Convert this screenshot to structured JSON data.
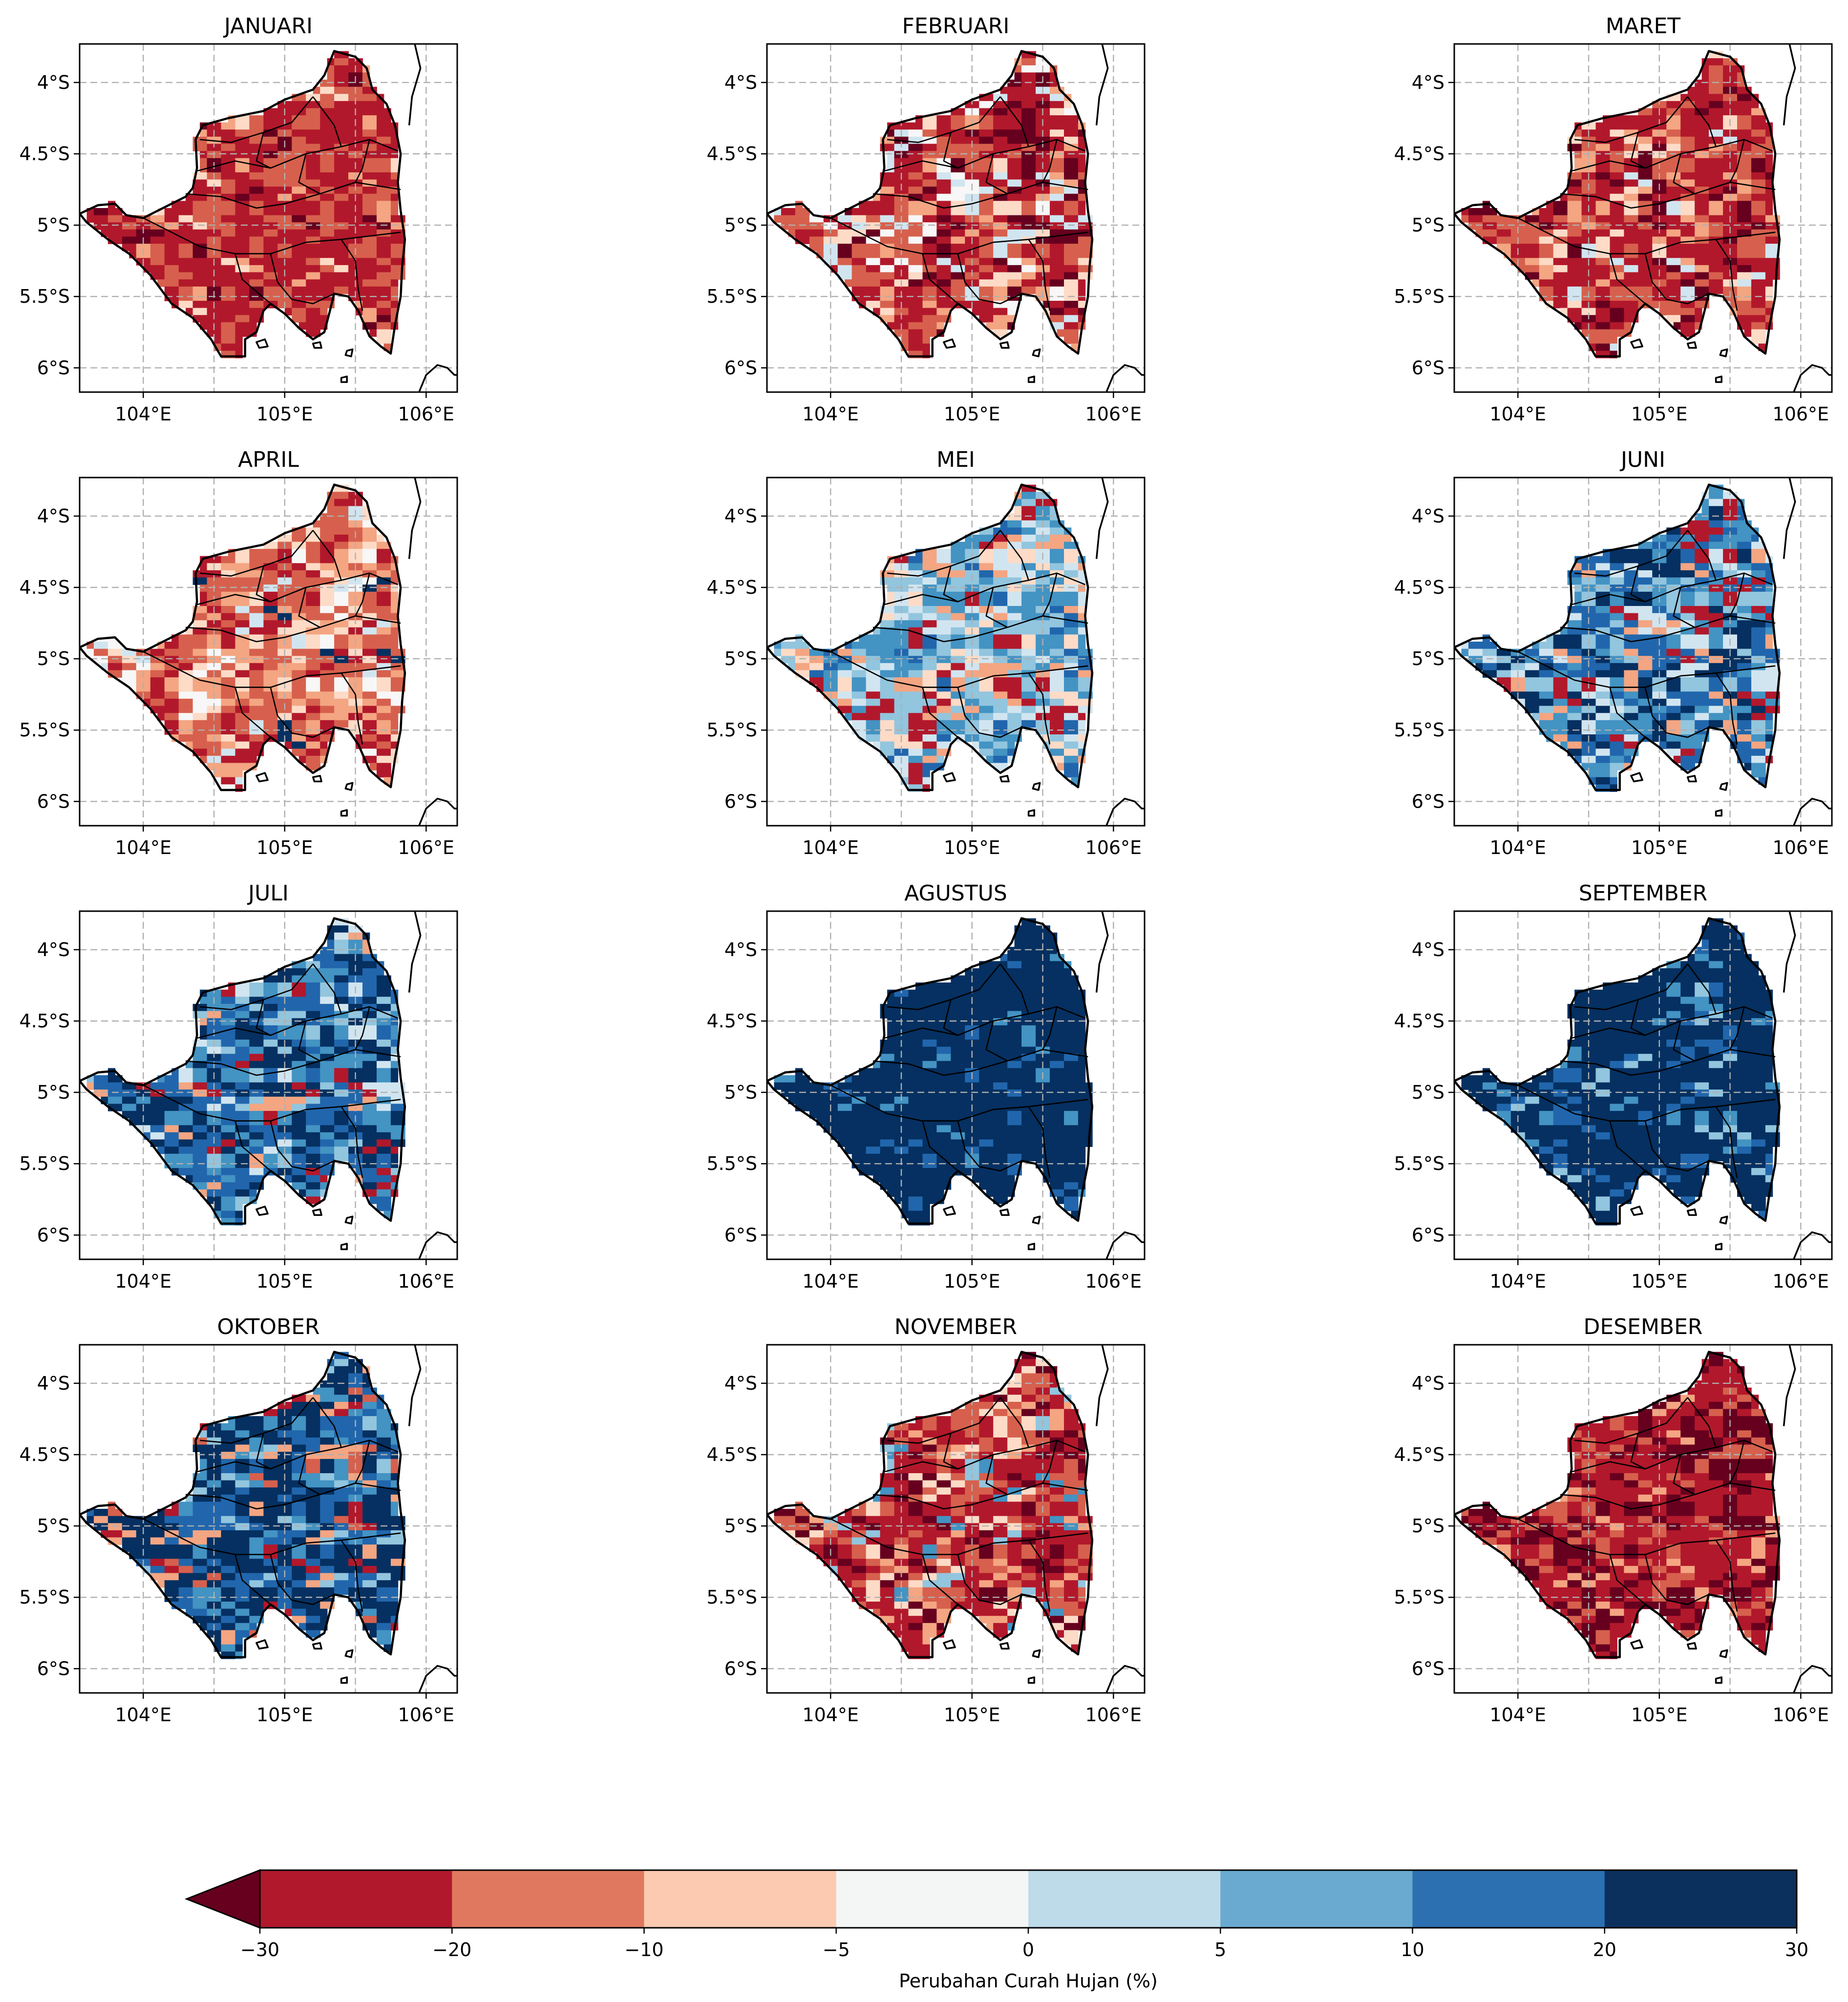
{
  "panels": [
    {
      "title": "JANUARI",
      "palette": [
        "#b2182b",
        "#d6604d",
        "#b2182b",
        "#67001f",
        "#f4a582",
        "#fddbc7"
      ],
      "weights": [
        35,
        30,
        20,
        6,
        6,
        3
      ]
    },
    {
      "title": "FEBRUARI",
      "palette": [
        "#b2182b",
        "#d6604d",
        "#67001f",
        "#f4a582",
        "#fddbc7",
        "#d1e5f0",
        "#f7f7f7"
      ],
      "weights": [
        30,
        25,
        14,
        10,
        8,
        7,
        6
      ]
    },
    {
      "title": "MARET",
      "palette": [
        "#b2182b",
        "#d6604d",
        "#67001f",
        "#f4a582",
        "#fddbc7",
        "#d1e5f0"
      ],
      "weights": [
        45,
        25,
        12,
        8,
        6,
        4
      ]
    },
    {
      "title": "APRIL",
      "palette": [
        "#d6604d",
        "#f4a582",
        "#b2182b",
        "#fddbc7",
        "#f7f7f7",
        "#d1e5f0",
        "#053061"
      ],
      "weights": [
        38,
        18,
        16,
        12,
        8,
        5,
        3
      ]
    },
    {
      "title": "MEI",
      "palette": [
        "#4393c3",
        "#92c5de",
        "#d1e5f0",
        "#f4a582",
        "#fddbc7",
        "#b2182b",
        "#2166ac"
      ],
      "weights": [
        24,
        20,
        14,
        12,
        10,
        10,
        10
      ]
    },
    {
      "title": "JUNI",
      "palette": [
        "#2166ac",
        "#4393c3",
        "#053061",
        "#92c5de",
        "#d1e5f0",
        "#b2182b",
        "#f4a582"
      ],
      "weights": [
        24,
        20,
        18,
        12,
        10,
        8,
        8
      ]
    },
    {
      "title": "JULI",
      "palette": [
        "#2166ac",
        "#053061",
        "#4393c3",
        "#92c5de",
        "#d1e5f0",
        "#b2182b",
        "#f4a582"
      ],
      "weights": [
        28,
        28,
        16,
        10,
        8,
        5,
        5
      ]
    },
    {
      "title": "AGUSTUS",
      "palette": [
        "#053061",
        "#053061",
        "#2166ac",
        "#4393c3"
      ],
      "weights": [
        80,
        10,
        6,
        4
      ]
    },
    {
      "title": "SEPTEMBER",
      "palette": [
        "#053061",
        "#2166ac",
        "#4393c3",
        "#92c5de"
      ],
      "weights": [
        78,
        12,
        6,
        4
      ]
    },
    {
      "title": "OKTOBER",
      "palette": [
        "#053061",
        "#2166ac",
        "#4393c3",
        "#92c5de",
        "#b2182b",
        "#f4a582",
        "#d6604d"
      ],
      "weights": [
        42,
        22,
        12,
        8,
        6,
        5,
        5
      ]
    },
    {
      "title": "NOVEMBER",
      "palette": [
        "#b2182b",
        "#d6604d",
        "#67001f",
        "#f4a582",
        "#fddbc7",
        "#92c5de",
        "#4393c3"
      ],
      "weights": [
        38,
        24,
        14,
        10,
        6,
        4,
        4
      ]
    },
    {
      "title": "DESEMBER",
      "palette": [
        "#b2182b",
        "#67001f",
        "#d6604d",
        "#f4a582"
      ],
      "weights": [
        48,
        32,
        14,
        6
      ]
    }
  ],
  "axes": {
    "lon_ticks": [
      "104°E",
      "105°E",
      "106°E"
    ],
    "lat_ticks": [
      "4°S",
      "4.5°S",
      "5°S",
      "5.5°S",
      "6°S"
    ]
  },
  "colorbar": {
    "label": "Perubahan Curah Hujan (%)",
    "ticks": [
      "−30",
      "−20",
      "−10",
      "−5",
      "0",
      "5",
      "10",
      "20",
      "30"
    ],
    "colors": [
      "#b2182b",
      "#e0785f",
      "#fccab1",
      "#f4f6f6",
      "#bedbea",
      "#6aaad0",
      "#2c70b1",
      "#0c305d"
    ],
    "extend_color": "#67001f"
  },
  "colors": {
    "grid": "#b0b0b0",
    "frame": "#000000",
    "ocean": "#ffffff"
  }
}
